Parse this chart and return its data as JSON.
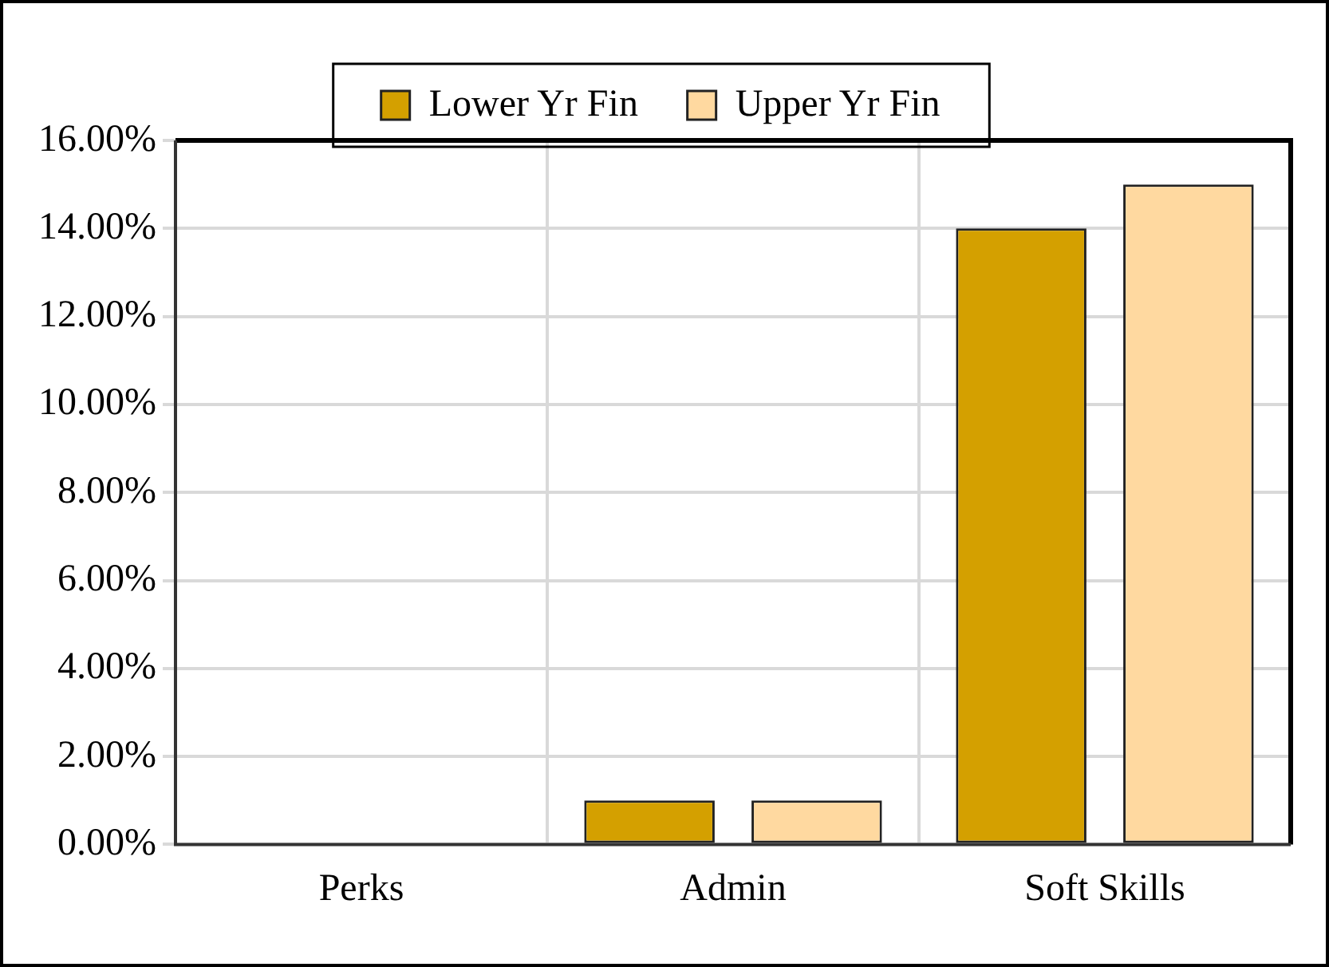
{
  "chart_data": {
    "type": "bar",
    "categories": [
      "Perks",
      "Admin",
      "Soft Skills"
    ],
    "series": [
      {
        "name": "Lower Yr Fin",
        "color": "#d4a000",
        "values": [
          0,
          1,
          14
        ]
      },
      {
        "name": "Upper Yr Fin",
        "color": "#ffd9a0",
        "values": [
          0,
          1,
          15
        ]
      }
    ],
    "ylim": [
      0,
      16
    ],
    "yticks": [
      {
        "value": 0,
        "label": "0.00%"
      },
      {
        "value": 2,
        "label": "2.00%"
      },
      {
        "value": 4,
        "label": "4.00%"
      },
      {
        "value": 6,
        "label": "6.00%"
      },
      {
        "value": 8,
        "label": "8.00%"
      },
      {
        "value": 10,
        "label": "10.00%"
      },
      {
        "value": 12,
        "label": "12.00%"
      },
      {
        "value": 14,
        "label": "14.00%"
      },
      {
        "value": 16,
        "label": "16.00%"
      }
    ],
    "grid": true,
    "legend": "top"
  }
}
